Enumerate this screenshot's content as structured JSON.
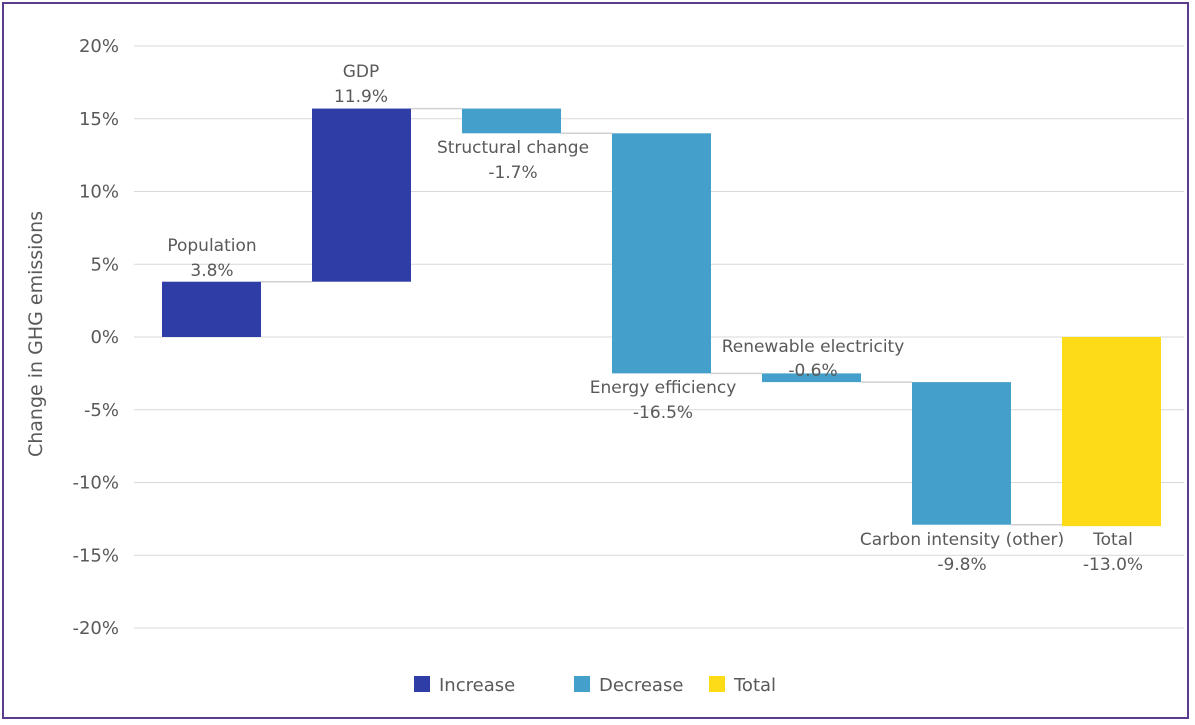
{
  "chart_data": {
    "type": "bar",
    "subtype": "waterfall",
    "title": "",
    "xlabel": "",
    "ylabel": "Change in GHG emissions",
    "ylim": [
      -20,
      20
    ],
    "yticks": [
      20,
      15,
      10,
      5,
      0,
      -5,
      -10,
      -15,
      -20
    ],
    "ytick_labels": [
      "20%",
      "15%",
      "10%",
      "5%",
      "0%",
      "-5%",
      "-10%",
      "-15%",
      "-20%"
    ],
    "grid": true,
    "legend_position": "bottom",
    "colors": {
      "Increase": "#2e3ea6",
      "Decrease": "#449fcb",
      "Total": "#fedb17"
    },
    "legend": [
      "Increase",
      "Decrease",
      "Total"
    ],
    "steps": [
      {
        "label": "Population",
        "value": 3.8,
        "value_label": "3.8%",
        "kind": "Increase"
      },
      {
        "label": "GDP",
        "value": 11.9,
        "value_label": "11.9%",
        "kind": "Increase"
      },
      {
        "label": "Structural change",
        "value": -1.7,
        "value_label": "-1.7%",
        "kind": "Decrease"
      },
      {
        "label": "Energy efficiency",
        "value": -16.5,
        "value_label": "-16.5%",
        "kind": "Decrease"
      },
      {
        "label": "Renewable electricity",
        "value": -0.6,
        "value_label": "-0.6%",
        "kind": "Decrease"
      },
      {
        "label": "Carbon intensity (other)",
        "value": -9.8,
        "value_label": "-9.8%",
        "kind": "Decrease"
      },
      {
        "label": "Total",
        "value": -13.0,
        "value_label": "-13.0%",
        "kind": "Total"
      }
    ]
  }
}
